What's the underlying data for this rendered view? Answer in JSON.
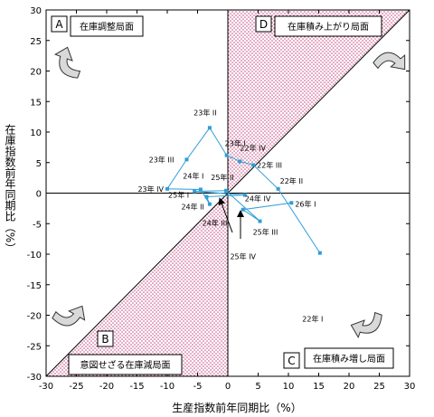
{
  "chart_data": {
    "type": "scatter",
    "xlabel": "生産指数前年同期比（%）",
    "ylabel": "在庫指数前年同期比（%）",
    "xlim": [
      -30,
      30
    ],
    "ylim": [
      -30,
      30
    ],
    "xticks": [
      -30,
      -25,
      -20,
      -15,
      -10,
      -5,
      0,
      5,
      10,
      15,
      20,
      25,
      30
    ],
    "yticks": [
      -30,
      -25,
      -20,
      -15,
      -10,
      -5,
      0,
      5,
      10,
      15,
      20,
      25,
      30
    ],
    "grid": false,
    "series_color": "#2f9ed6",
    "shade_color": "#c4417a",
    "points": [
      {
        "label": "22年 I",
        "x": 15.2,
        "y": -9.8
      },
      {
        "label": "22年 II",
        "x": 8.3,
        "y": 0.7
      },
      {
        "label": "22年 III",
        "x": 4.2,
        "y": 4.6
      },
      {
        "label": "22年 IV",
        "x": 2.0,
        "y": 5.2
      },
      {
        "label": "23年 I",
        "x": -0.2,
        "y": 6.2
      },
      {
        "label": "23年 II",
        "x": -3.0,
        "y": 10.7
      },
      {
        "label": "23年 III",
        "x": -6.8,
        "y": 5.5
      },
      {
        "label": "23年 IV",
        "x": -10.0,
        "y": 0.7
      },
      {
        "label": "24年 I",
        "x": -4.5,
        "y": 0.6
      },
      {
        "label": "24年 II",
        "x": -3.0,
        "y": -1.8
      },
      {
        "label": "24年 III",
        "x": -3.5,
        "y": -0.6
      },
      {
        "label": "24年 IV",
        "x": 2.8,
        "y": -0.3
      },
      {
        "label": "25年 I",
        "x": -5.5,
        "y": 0.3
      },
      {
        "label": "25年 II",
        "x": -0.3,
        "y": 0.4
      },
      {
        "label": "25年 III",
        "x": 5.3,
        "y": -4.6
      },
      {
        "label": "25年 IV",
        "x": 2.5,
        "y": -2.7
      },
      {
        "label": "26年 I",
        "x": 10.5,
        "y": -1.6
      }
    ],
    "quadrants": [
      {
        "letter": "A",
        "label": "在庫調整局面"
      },
      {
        "letter": "D",
        "label": "在庫積み上がり局面"
      },
      {
        "letter": "B",
        "label": "意図せざる在庫減局面"
      },
      {
        "letter": "C",
        "label": "在庫積み増し局面"
      }
    ]
  }
}
